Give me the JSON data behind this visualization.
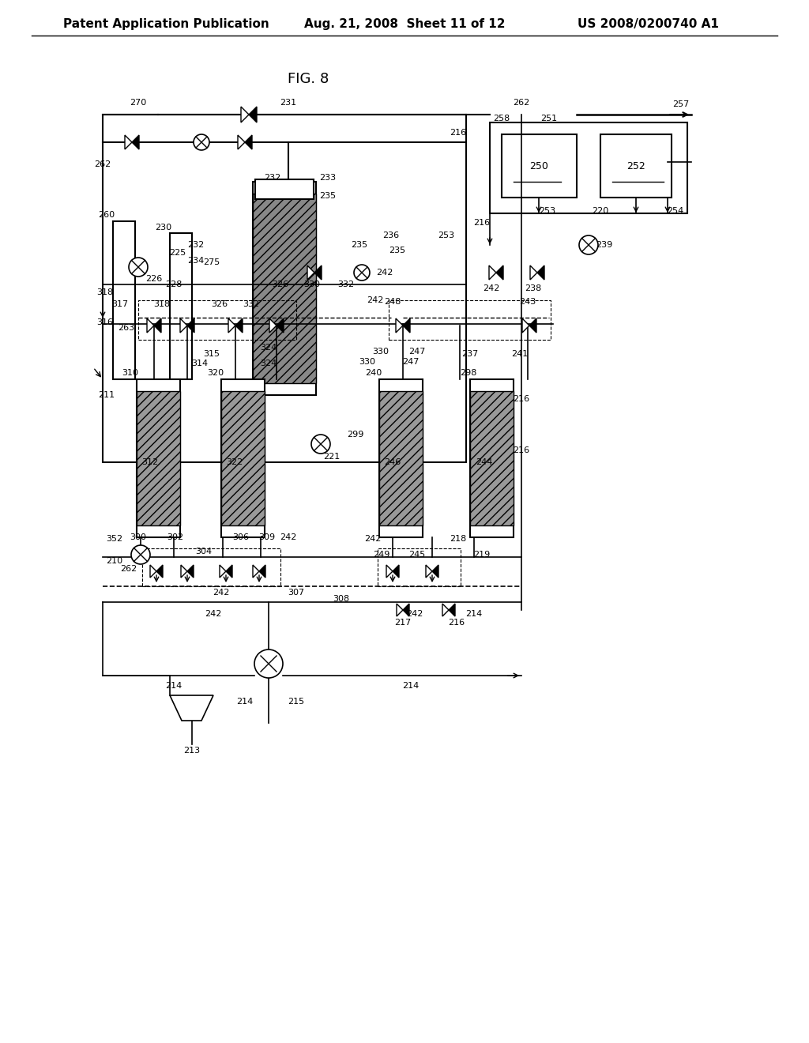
{
  "title": "FIG. 8",
  "header_left": "Patent Application Publication",
  "header_center": "Aug. 21, 2008  Sheet 11 of 12",
  "header_right": "US 2008/0200740 A1",
  "bg_color": "#ffffff",
  "line_color": "#000000",
  "font_size_header": 11,
  "font_size_label": 9,
  "font_size_title": 13
}
